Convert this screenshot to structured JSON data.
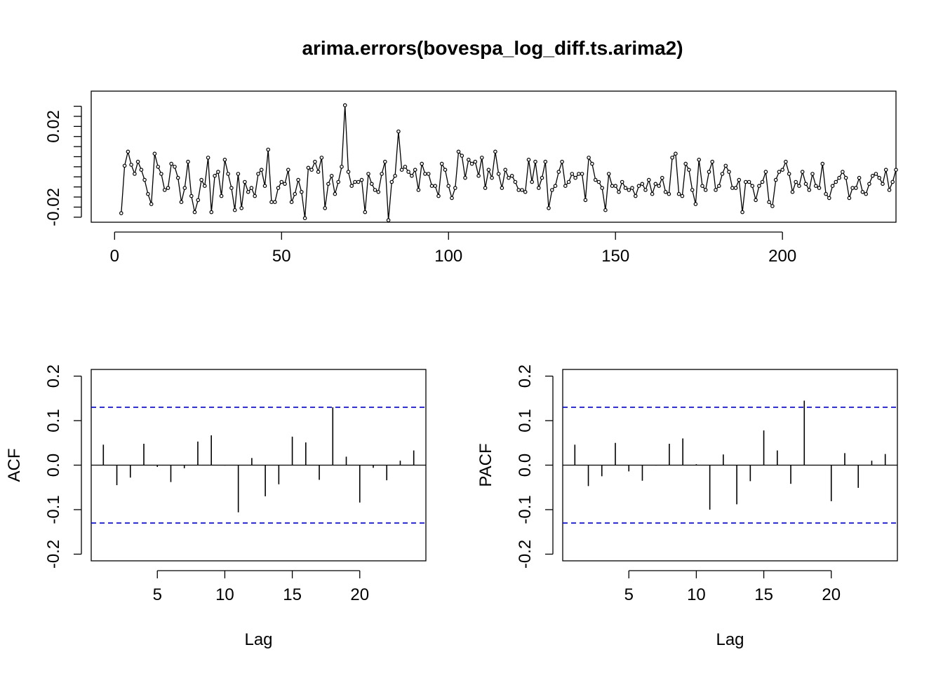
{
  "title": "arima.errors(bovespa_log_diff.ts.arima2)",
  "colors": {
    "axis": "#000000",
    "series": "#000000",
    "confidence": "#0000CC"
  },
  "chart_data": [
    {
      "id": "series",
      "type": "line",
      "title": "arima.errors(bovespa_log_diff.ts.arima2)",
      "xlabel": "",
      "ylabel": "",
      "xlim": [
        -7,
        234
      ],
      "ylim": [
        -0.0275,
        0.0375
      ],
      "xticks": [
        0,
        50,
        100,
        150,
        200
      ],
      "xtick_labels": [
        "0",
        "50",
        "100",
        "150",
        "200"
      ],
      "yticks": [
        -0.025,
        -0.02,
        -0.015,
        -0.01,
        -0.005,
        0,
        0.005,
        0.01,
        0.015,
        0.02,
        0.025,
        0.03
      ],
      "ytick_labels": [
        {
          "value": -0.02,
          "text": "-0.02"
        },
        {
          "value": 0.02,
          "text": "0.02"
        }
      ],
      "markers": true,
      "grid": false,
      "x_start": 2,
      "values": [
        -0.023,
        0.0005,
        0.0075,
        0.001,
        -0.0035,
        0.0025,
        -0.0015,
        -0.0065,
        -0.0135,
        -0.0185,
        0.0065,
        0.0,
        -0.0035,
        -0.0115,
        -0.0105,
        0.0015,
        0.0,
        -0.0055,
        -0.0175,
        -0.0105,
        0.0025,
        -0.0145,
        -0.0225,
        -0.0165,
        -0.0065,
        -0.0095,
        0.0045,
        -0.0225,
        -0.0045,
        -0.0025,
        -0.0145,
        0.0035,
        -0.0035,
        -0.0105,
        -0.0215,
        -0.0035,
        -0.0205,
        -0.0075,
        -0.0125,
        -0.0105,
        -0.0145,
        -0.0035,
        -0.0015,
        -0.0095,
        0.0085,
        -0.0175,
        -0.0175,
        -0.0105,
        -0.0075,
        -0.0085,
        -0.0015,
        -0.0175,
        -0.0135,
        -0.0065,
        -0.0125,
        -0.0255,
        -0.0005,
        -0.0015,
        0.0025,
        -0.0025,
        0.0045,
        -0.0205,
        -0.0085,
        -0.0045,
        -0.0135,
        -0.0075,
        0.0,
        0.0305,
        -0.0025,
        -0.0095,
        -0.0075,
        -0.0075,
        -0.0065,
        -0.0225,
        -0.0035,
        -0.0085,
        -0.0115,
        -0.0125,
        -0.0035,
        0.0025,
        -0.0265,
        -0.0075,
        -0.0045,
        0.0175,
        -0.0015,
        0.0,
        -0.0025,
        -0.0045,
        -0.0015,
        -0.0115,
        0.0015,
        -0.0035,
        -0.0035,
        -0.0095,
        -0.0095,
        -0.0145,
        0.0015,
        -0.0015,
        -0.0095,
        -0.0155,
        -0.0105,
        0.0075,
        0.0055,
        -0.0055,
        0.0035,
        0.0015,
        0.0025,
        -0.0045,
        0.0045,
        -0.0105,
        -0.0015,
        -0.0055,
        0.0075,
        -0.0035,
        -0.0105,
        -0.0015,
        -0.0055,
        -0.0045,
        -0.0075,
        -0.0115,
        -0.0115,
        -0.0125,
        0.0035,
        -0.0075,
        0.0025,
        -0.0105,
        -0.0055,
        0.0025,
        -0.0205,
        -0.0115,
        -0.0095,
        -0.0025,
        0.0025,
        -0.0095,
        -0.0075,
        -0.0035,
        -0.0055,
        -0.0035,
        -0.0035,
        -0.0165,
        0.0045,
        0.0015,
        -0.0065,
        -0.0075,
        -0.0105,
        -0.0215,
        -0.0035,
        -0.0095,
        -0.0095,
        -0.0125,
        -0.0075,
        -0.0105,
        -0.0115,
        -0.0105,
        -0.0145,
        -0.0095,
        -0.0085,
        -0.0115,
        -0.0065,
        -0.0135,
        -0.0085,
        -0.0095,
        -0.0055,
        -0.0125,
        -0.0135,
        0.0045,
        0.0065,
        -0.0135,
        -0.0145,
        0.0015,
        -0.0015,
        -0.0115,
        -0.0185,
        0.0035,
        -0.0095,
        -0.0115,
        -0.0025,
        0.0025,
        -0.0115,
        -0.0095,
        -0.0035,
        0.0005,
        -0.0025,
        -0.0105,
        -0.0105,
        -0.0065,
        -0.0225,
        -0.0075,
        -0.0075,
        -0.0095,
        -0.0165,
        -0.0095,
        -0.0075,
        -0.0025,
        -0.0175,
        -0.0195,
        -0.0065,
        -0.0025,
        -0.0015,
        0.0025,
        -0.0035,
        -0.0125,
        -0.0075,
        -0.0095,
        -0.0025,
        -0.0085,
        -0.0115,
        -0.0035,
        -0.0095,
        -0.0105,
        0.0015,
        -0.0135,
        -0.0155,
        -0.0095,
        -0.0075,
        -0.0055,
        -0.0025,
        -0.0055,
        -0.0155,
        -0.0105,
        -0.0105,
        -0.0055,
        -0.0125,
        -0.0135,
        -0.0085,
        -0.0045,
        -0.0035,
        -0.0055,
        -0.0085,
        -0.0015,
        -0.0115,
        -0.0075,
        -0.0015
      ]
    },
    {
      "id": "acf",
      "type": "bar",
      "title": "",
      "xlabel": "Lag",
      "ylabel": "ACF",
      "xlim": [
        0.1,
        24.9
      ],
      "ylim": [
        -0.215,
        0.215
      ],
      "xticks": [
        5,
        10,
        15,
        20
      ],
      "xtick_labels": [
        "5",
        "10",
        "15",
        "20"
      ],
      "yticks": [
        -0.2,
        -0.1,
        0.0,
        0.1,
        0.2
      ],
      "ytick_labels": [
        "-0.2",
        "-0.1",
        "0.0",
        "0.1",
        "0.2"
      ],
      "confidence_band": [
        -0.13,
        0.13
      ],
      "lags": [
        1,
        2,
        3,
        4,
        5,
        6,
        7,
        8,
        9,
        10,
        11,
        12,
        13,
        14,
        15,
        16,
        17,
        18,
        19,
        20,
        21,
        22,
        23,
        24
      ],
      "values": [
        0.046,
        -0.045,
        -0.028,
        0.048,
        -0.004,
        -0.038,
        -0.007,
        0.053,
        0.067,
        -0.001,
        -0.106,
        0.016,
        -0.07,
        -0.043,
        0.064,
        0.051,
        -0.033,
        0.13,
        0.019,
        -0.084,
        -0.006,
        -0.034,
        0.01,
        0.033
      ]
    },
    {
      "id": "pacf",
      "type": "bar",
      "title": "",
      "xlabel": "Lag",
      "ylabel": "PACF",
      "xlim": [
        0.1,
        24.9
      ],
      "ylim": [
        -0.215,
        0.215
      ],
      "xticks": [
        5,
        10,
        15,
        20
      ],
      "xtick_labels": [
        "5",
        "10",
        "15",
        "20"
      ],
      "yticks": [
        -0.2,
        -0.1,
        0.0,
        0.1,
        0.2
      ],
      "ytick_labels": [
        "-0.2",
        "-0.1",
        "0.0",
        "0.1",
        "0.2"
      ],
      "confidence_band": [
        -0.13,
        0.13
      ],
      "lags": [
        1,
        2,
        3,
        4,
        5,
        6,
        7,
        8,
        9,
        10,
        11,
        12,
        13,
        14,
        15,
        16,
        17,
        18,
        19,
        20,
        21,
        22,
        23,
        24
      ],
      "values": [
        0.046,
        -0.047,
        -0.025,
        0.05,
        -0.014,
        -0.035,
        -0.001,
        0.048,
        0.06,
        0.002,
        -0.1,
        0.024,
        -0.088,
        -0.036,
        0.078,
        0.033,
        -0.042,
        0.145,
        0.0,
        -0.081,
        0.027,
        -0.051,
        0.01,
        0.025
      ]
    }
  ]
}
